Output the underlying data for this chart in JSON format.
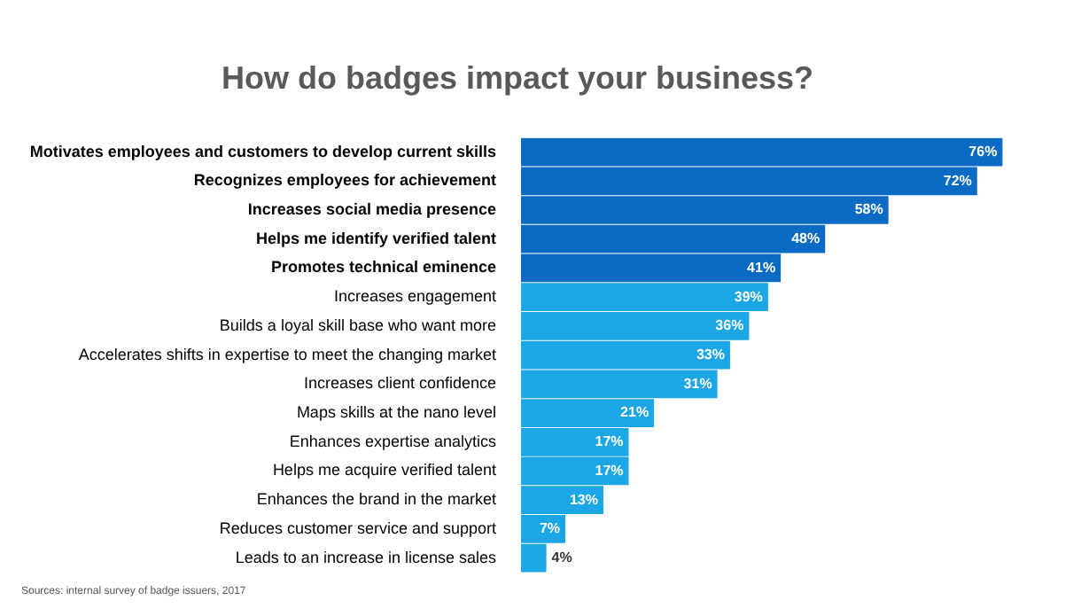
{
  "chart_data": {
    "type": "bar",
    "orientation": "horizontal",
    "title": "How do badges impact your business?",
    "categories": [
      "Motivates employees and customers to develop current skills",
      "Recognizes employees for achievement",
      "Increases social media presence",
      "Helps me identify verified talent",
      "Promotes technical eminence",
      "Increases engagement",
      "Builds a loyal skill base who want more",
      "Accelerates shifts in expertise to meet the changing market",
      "Increases client confidence",
      "Maps skills at the nano level",
      "Enhances expertise analytics",
      "Helps me acquire verified talent",
      "Enhances the brand in the market",
      "Reduces customer service and support",
      "Leads to an increase in license sales"
    ],
    "values": [
      76,
      72,
      58,
      48,
      41,
      39,
      36,
      33,
      31,
      21,
      17,
      17,
      13,
      7,
      4
    ],
    "value_labels": [
      "76%",
      "72%",
      "58%",
      "48%",
      "41%",
      "39%",
      "36%",
      "33%",
      "31%",
      "21%",
      "17%",
      "17%",
      "13%",
      "7%",
      "4%"
    ],
    "colors": [
      "#0b6bc4",
      "#0b6bc4",
      "#0b6bc4",
      "#0b6bc4",
      "#0b6bc4",
      "#1ba6e6",
      "#1ba6e6",
      "#1ba6e6",
      "#1ba6e6",
      "#1ba6e6",
      "#1ba6e6",
      "#1ba6e6",
      "#1ba6e6",
      "#1ba6e6",
      "#1ba6e6"
    ],
    "tick_labels": "y",
    "legend": false,
    "annotations": [
      "Sources: internal survey of badge issuers, 2017"
    ]
  }
}
